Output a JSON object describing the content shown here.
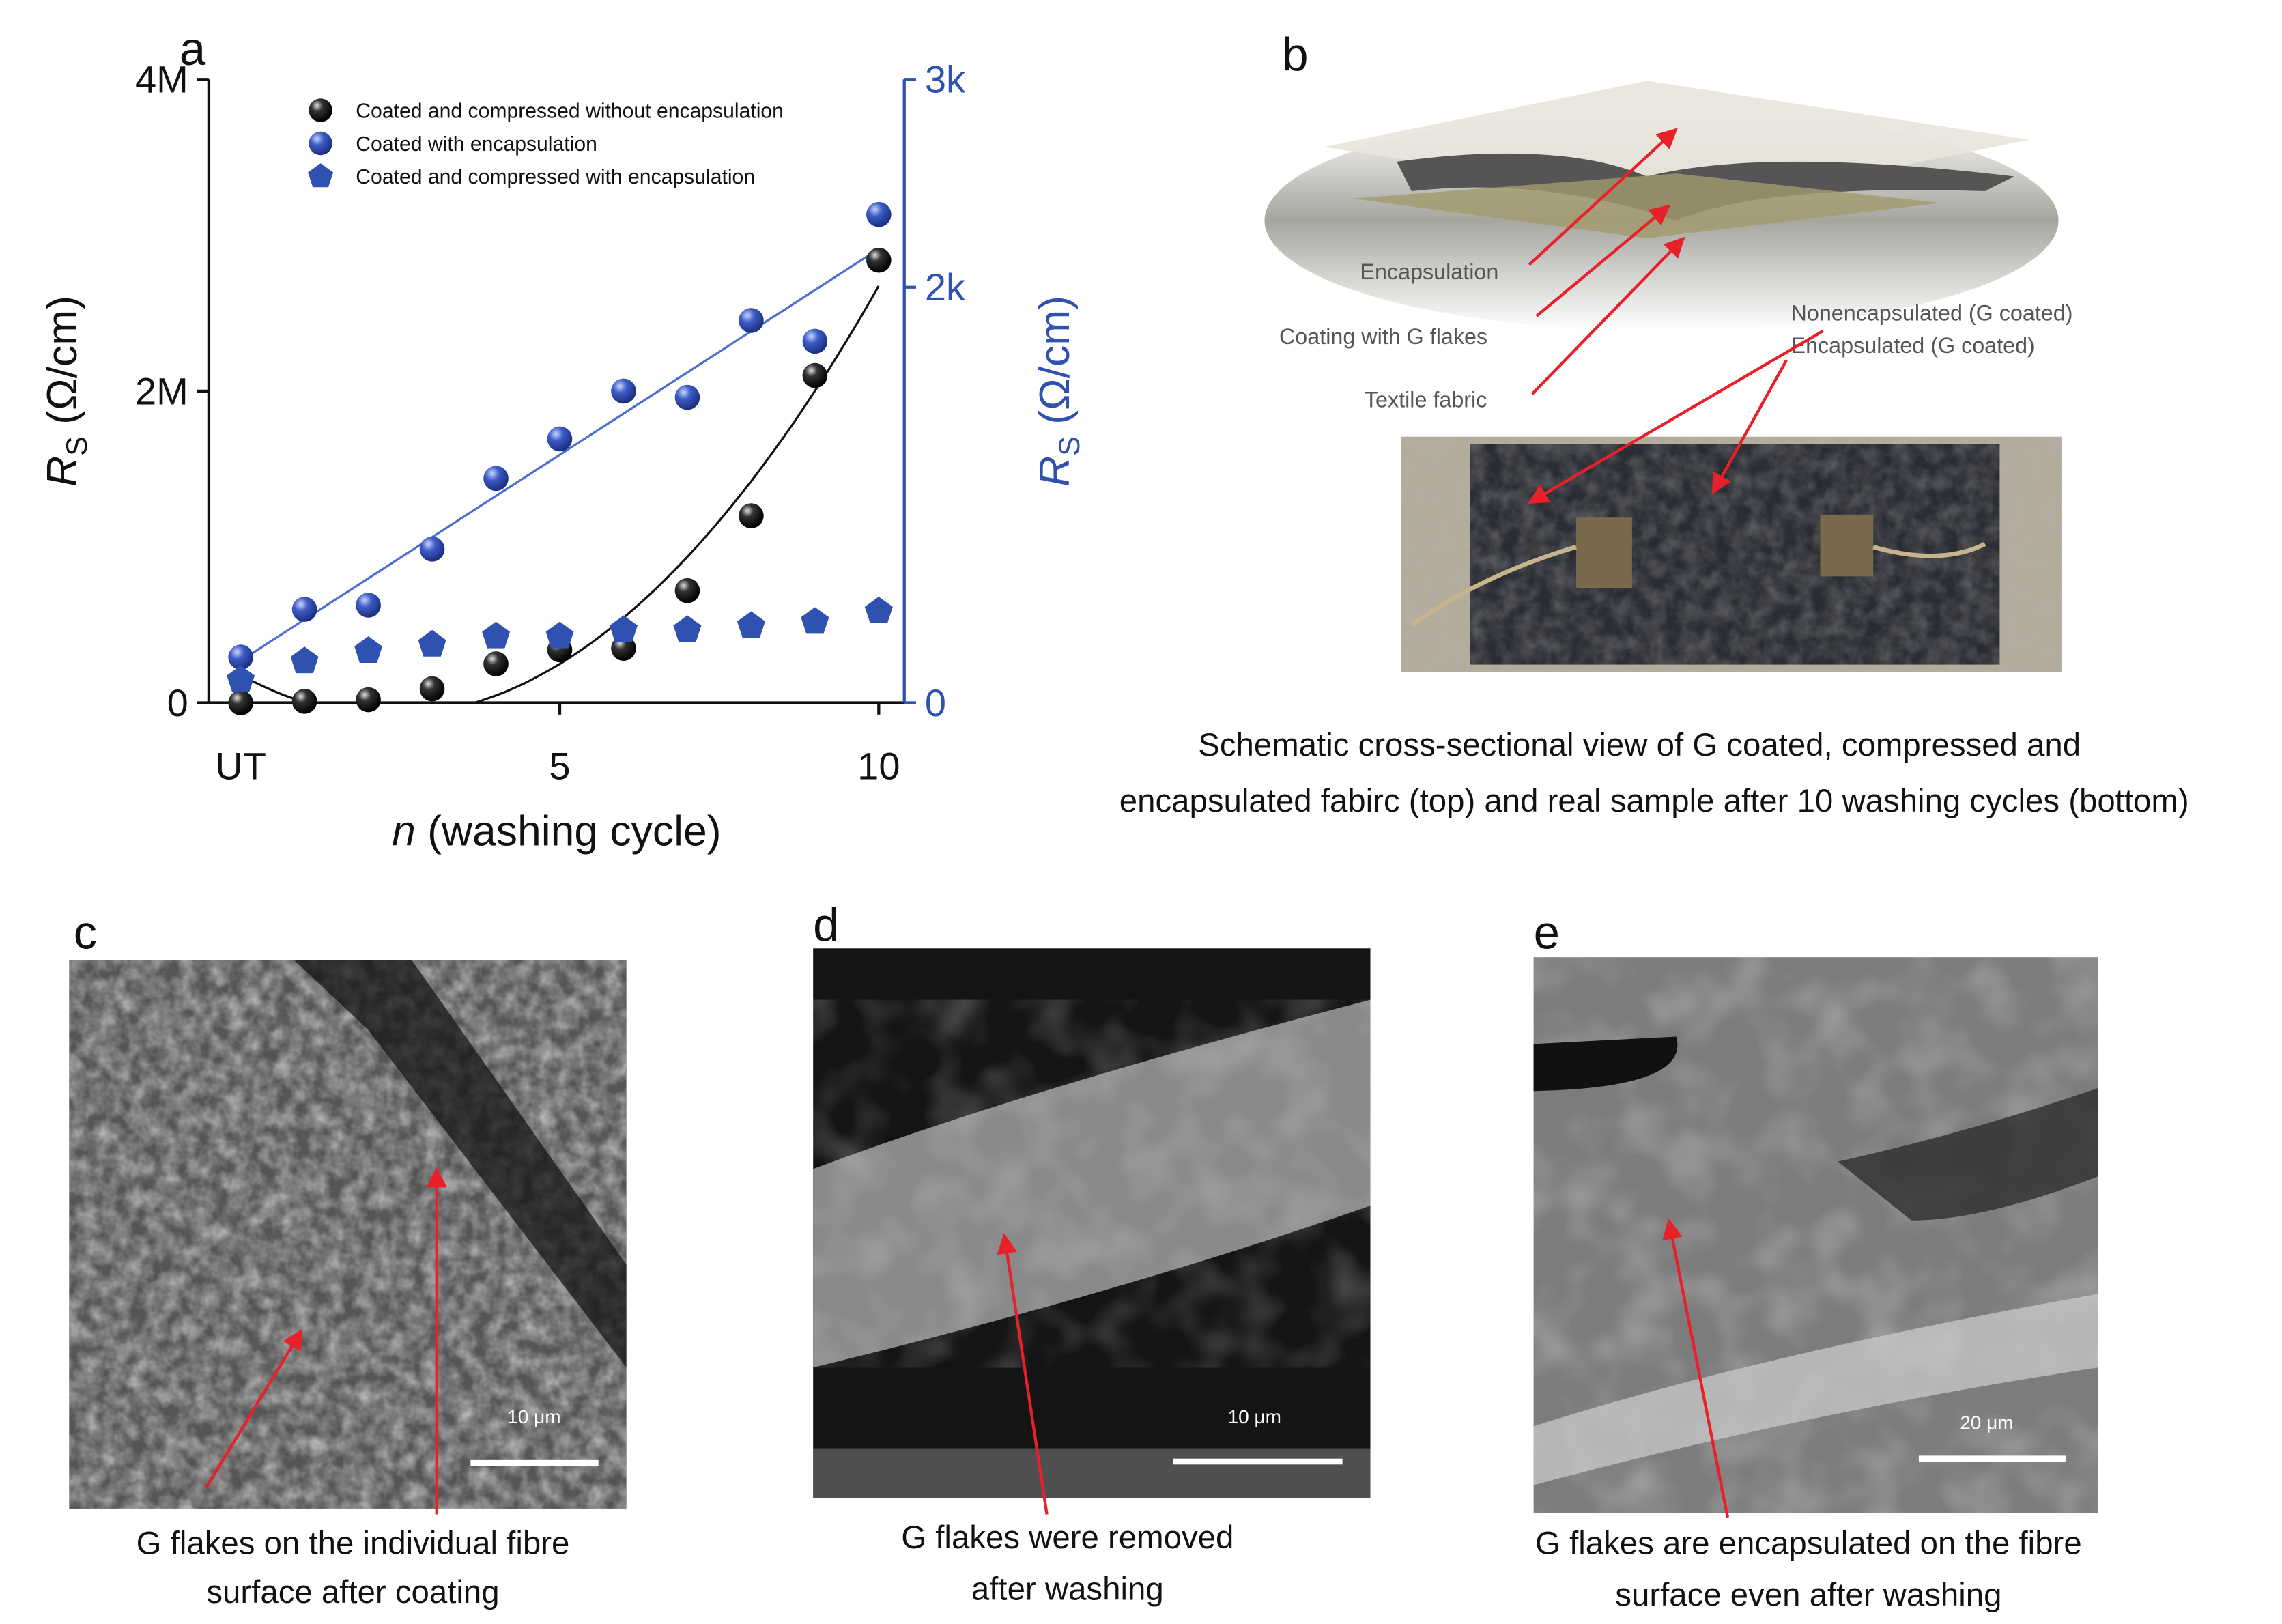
{
  "chart_data": {
    "type": "scatter",
    "panel_label": "a",
    "y_label": {
      "main": "R",
      "sub": "S",
      "unit": " (Ω/cm)"
    },
    "y2_label": {
      "main": "R",
      "sub": "S",
      "unit": " (Ω/cm)"
    },
    "x_label": {
      "var": "n",
      "rest": " (washing cycle)"
    },
    "x": [
      0,
      1,
      2,
      3,
      4,
      5,
      6,
      7,
      8,
      9,
      10
    ],
    "xlim": [
      -0.5,
      10.4
    ],
    "xticks": [
      {
        "value": 0,
        "label": "UT"
      },
      5,
      10
    ],
    "ylim": [
      0,
      4000000
    ],
    "yticks": [
      0,
      {
        "value": 2000000,
        "label": "2M"
      },
      {
        "value": 4000000,
        "label": "4M"
      }
    ],
    "y2lim": [
      0,
      3000
    ],
    "y2ticks": [
      0,
      {
        "value": 2000,
        "label": "2k"
      },
      {
        "value": 3000,
        "label": "3k"
      }
    ],
    "y2_color": "#2f52b0",
    "series": [
      {
        "name": "Coated and compressed without encapsulation",
        "color": "#111111",
        "marker": "circle",
        "fit": "quadratic",
        "values": [
          0,
          10000,
          20000,
          90000,
          250000,
          340000,
          350000,
          720000,
          1200000,
          2100000,
          2840000
        ]
      },
      {
        "name": "Coated with encapsulation",
        "color": "#3553b8",
        "marker": "circle",
        "axis": "y2",
        "fit": "linear",
        "values": [
          220,
          450,
          470,
          740,
          1080,
          1270,
          1500,
          1470,
          1840,
          1740,
          2350
        ]
      },
      {
        "name": "Coated and compressed with encapsulation",
        "color": "#2f52b0",
        "marker": "pentagon",
        "axis": "y2",
        "values": [
          110,
          200,
          250,
          280,
          320,
          320,
          350,
          350,
          370,
          390,
          440
        ]
      }
    ]
  },
  "panels": {
    "b": {
      "label": "b",
      "layers": [
        "Encapsulation",
        "Coating with G flakes",
        "Textile fabric"
      ],
      "photo": [
        "Nonencapsulated (G coated)",
        "Encapsulated (G coated)"
      ],
      "caption": [
        "Schematic cross-sectional view of G coated, compressed and",
        "encapsulated fabirc (top) and real sample after 10 washing cycles (bottom)"
      ]
    },
    "c": {
      "label": "c",
      "scale": "10 μm",
      "caption": [
        "G flakes on the individual fibre",
        "surface after coating"
      ]
    },
    "d": {
      "label": "d",
      "scale": "10 μm",
      "caption": [
        "G flakes were removed",
        "after washing"
      ]
    },
    "e": {
      "label": "e",
      "scale": "20 μm",
      "caption": [
        "G flakes are encapsulated on the fibre",
        "surface even after washing"
      ]
    }
  }
}
